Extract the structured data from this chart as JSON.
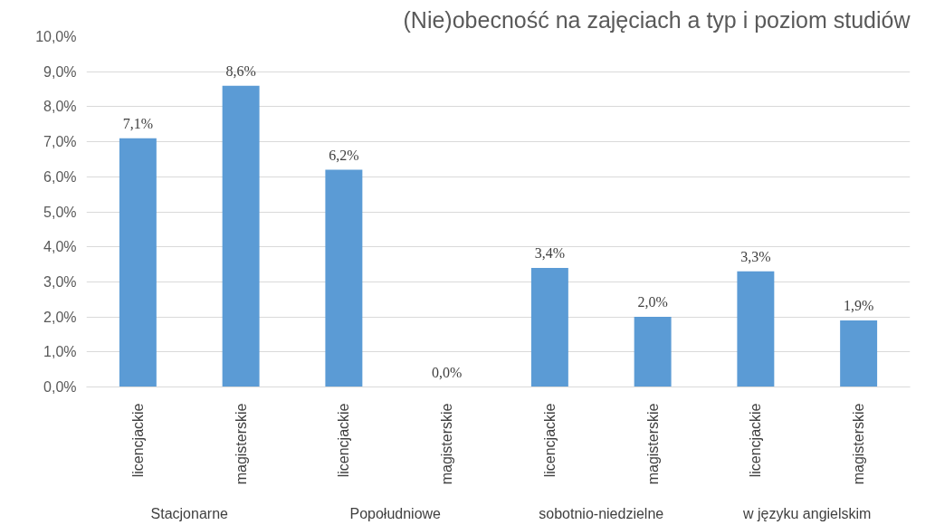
{
  "chart_data": {
    "type": "bar",
    "title": "(Nie)obecność na zajęciach a typ i poziom studiów",
    "categories": [
      "licencjackie",
      "magisterskie",
      "licencjackie",
      "magisterskie",
      "licencjackie",
      "magisterskie",
      "licencjackie",
      "magisterskie"
    ],
    "values": [
      7.1,
      8.6,
      6.2,
      0.0,
      3.4,
      2.0,
      3.3,
      1.9
    ],
    "value_labels": [
      "7,1%",
      "8,6%",
      "6,2%",
      "0,0%",
      "3,4%",
      "2,0%",
      "3,3%",
      "1,9%"
    ],
    "color": "#5b9bd5",
    "ylim": [
      0,
      10
    ],
    "yticks": [
      {
        "value": 0,
        "label": "0,0%"
      },
      {
        "value": 1,
        "label": "1,0%"
      },
      {
        "value": 2,
        "label": "2,0%"
      },
      {
        "value": 3,
        "label": "3,0%"
      },
      {
        "value": 4,
        "label": "4,0%"
      },
      {
        "value": 5,
        "label": "5,0%"
      },
      {
        "value": 6,
        "label": "6,0%"
      },
      {
        "value": 7,
        "label": "7,0%"
      },
      {
        "value": 8,
        "label": "8,0%"
      },
      {
        "value": 9,
        "label": "9,0%"
      },
      {
        "value": 10,
        "label": "10,0%"
      }
    ],
    "grid": "y",
    "annotations": [
      "Stacjonarne",
      "Popołudniowe",
      "sobotnio-niedzielne",
      "w języku angielskim"
    ]
  }
}
